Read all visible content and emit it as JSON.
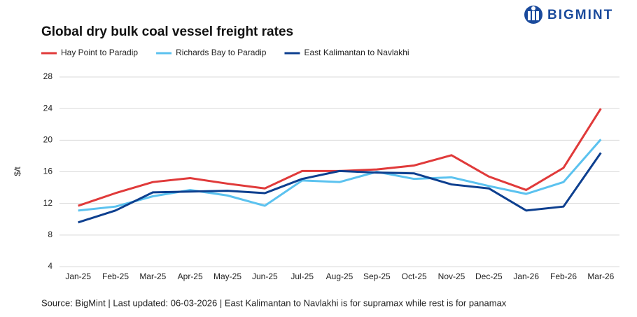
{
  "brand": "BIGMINT",
  "chart_data": {
    "type": "line",
    "title": "Global dry bulk coal vessel freight rates",
    "y_label": "$/t",
    "source": "Source: BigMint | Last updated: 06-03-2026 | East Kalimantan to Navlakhi is for supramax while rest is for panamax",
    "categories": [
      "Jan-25",
      "Feb-25",
      "Mar-25",
      "Apr-25",
      "May-25",
      "Jun-25",
      "Jul-25",
      "Aug-25",
      "Sep-25",
      "Oct-25",
      "Nov-25",
      "Dec-25",
      "Jan-26",
      "Feb-26",
      "Mar-26"
    ],
    "series": [
      {
        "name": "Hay Point to Paradip",
        "color": "#e03a3a",
        "values": [
          11.7,
          13.3,
          14.7,
          15.2,
          14.5,
          13.9,
          16.1,
          16.1,
          16.3,
          16.8,
          18.1,
          15.4,
          13.7,
          16.5,
          24.0
        ]
      },
      {
        "name": "Richards Bay to Paradip",
        "color": "#5bc2ef",
        "values": [
          11.1,
          11.6,
          12.9,
          13.7,
          13.0,
          11.7,
          14.9,
          14.7,
          16.0,
          15.1,
          15.3,
          14.2,
          13.2,
          14.7,
          20.1
        ]
      },
      {
        "name": "East Kalimantan to Navlakhi",
        "color": "#0d3f8f",
        "values": [
          9.6,
          11.1,
          13.4,
          13.5,
          13.6,
          13.3,
          15.1,
          16.1,
          15.9,
          15.8,
          14.4,
          13.9,
          11.1,
          11.6,
          18.4
        ]
      }
    ],
    "ylim": [
      4,
      28
    ],
    "yticks": [
      4,
      8,
      12,
      16,
      20,
      24,
      28
    ],
    "grid": true,
    "legend": "top-left"
  }
}
